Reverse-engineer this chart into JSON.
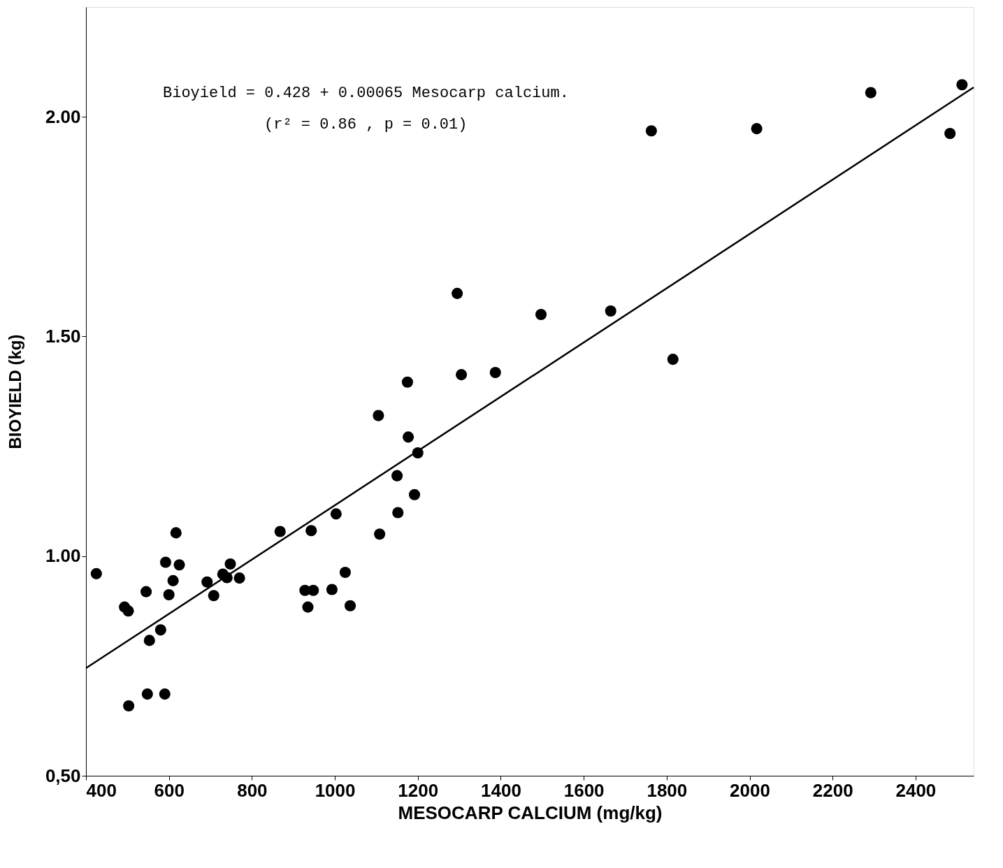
{
  "chart_data": {
    "type": "scatter",
    "xlabel": "MESOCARP CALCIUM  (mg/kg)",
    "ylabel": "BIOYIELD   (kg)",
    "xlim": [
      400,
      2540
    ],
    "ylim": [
      0.5,
      2.25
    ],
    "xticks": [
      400,
      600,
      800,
      1000,
      1200,
      1400,
      1600,
      1800,
      2000,
      2200,
      2400
    ],
    "yticks": [
      {
        "value": 0.5,
        "label": "0,50"
      },
      {
        "value": 1.0,
        "label": "1.00"
      },
      {
        "value": 1.5,
        "label": "1.50"
      },
      {
        "value": 2.0,
        "label": "2.00"
      }
    ],
    "grid": false,
    "marker": "circle",
    "annotations": [
      {
        "text": "Bioyield = 0.428 + 0.00065 Mesocarp calcium."
      },
      {
        "text": "(r² = 0.86 ,  p = 0.01)"
      }
    ],
    "series": [
      {
        "color": "#000000",
        "x": [
          425,
          493,
          502,
          545,
          503,
          548,
          553,
          580,
          590,
          592,
          600,
          610,
          617,
          625,
          692,
          708,
          730,
          740,
          748,
          770,
          868,
          928,
          935,
          943,
          948,
          993,
          1003,
          1025,
          1037,
          1105,
          1108,
          1150,
          1152,
          1175,
          1177,
          1192,
          1200,
          1295,
          1305,
          1387,
          1497,
          1665,
          1763,
          1815,
          2017,
          2292,
          2483,
          2512
        ],
        "values": [
          0.96,
          0.884,
          0.875,
          0.919,
          0.659,
          0.686,
          0.808,
          0.832,
          0.686,
          0.986,
          0.912,
          0.944,
          1.053,
          0.98,
          0.941,
          0.91,
          0.959,
          0.951,
          0.982,
          0.95,
          1.056,
          0.922,
          0.884,
          1.058,
          0.922,
          0.924,
          1.096,
          0.963,
          0.887,
          1.32,
          1.05,
          1.183,
          1.099,
          1.396,
          1.271,
          1.14,
          1.235,
          1.598,
          1.413,
          1.418,
          1.55,
          1.558,
          1.968,
          1.448,
          1.973,
          2.055,
          1.962,
          2.073
        ]
      },
      {
        "type": "line",
        "color": "#000000",
        "line_style": "solid",
        "marker": "none",
        "x": [
          400,
          2540
        ],
        "values": [
          0.745,
          2.067
        ]
      }
    ]
  }
}
